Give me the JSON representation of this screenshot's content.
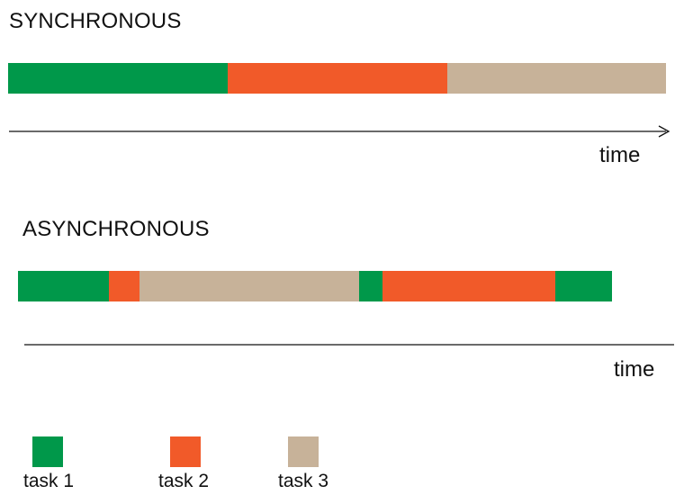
{
  "colors": {
    "task1": "#00984a",
    "task2": "#f15a29",
    "task3": "#c7b299",
    "line": "#111111"
  },
  "sync": {
    "title": "SYNCHRONOUS",
    "time_label": "time",
    "segments": [
      {
        "task": "task1",
        "start": 0,
        "end": 244
      },
      {
        "task": "task2",
        "start": 244,
        "end": 488
      },
      {
        "task": "task3",
        "start": 488,
        "end": 731
      }
    ]
  },
  "async": {
    "title": "ASYNCHRONOUS",
    "time_label": "time",
    "segments": [
      {
        "task": "task1",
        "start": 0,
        "end": 101
      },
      {
        "task": "task2",
        "start": 101,
        "end": 135
      },
      {
        "task": "task3",
        "start": 135,
        "end": 379
      },
      {
        "task": "task1",
        "start": 379,
        "end": 405
      },
      {
        "task": "task2",
        "start": 405,
        "end": 597
      },
      {
        "task": "task1",
        "start": 597,
        "end": 660
      }
    ]
  },
  "legend": [
    {
      "key": "task1",
      "label": "task 1"
    },
    {
      "key": "task2",
      "label": "task 2"
    },
    {
      "key": "task3",
      "label": "task 3"
    }
  ]
}
